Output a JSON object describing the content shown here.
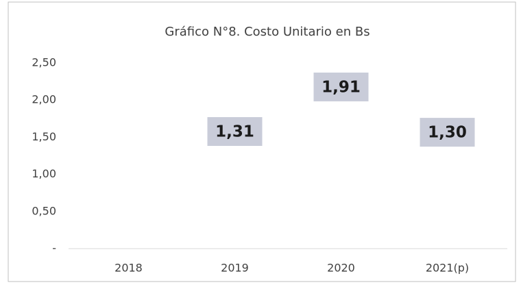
{
  "chart_data": {
    "type": "bar",
    "title": "Gráfico N°8. Costo Unitario en Bs",
    "categories": [
      "2018",
      "2019",
      "2020",
      "2021(p)"
    ],
    "values": [
      null,
      1.31,
      1.91,
      1.3
    ],
    "value_labels": [
      null,
      "1,31",
      "1,91",
      "1,30"
    ],
    "label_color": "#c9ccd9",
    "ylim": [
      0,
      2.5
    ],
    "yticks": [
      {
        "value": 0,
        "label": "-"
      },
      {
        "value": 0.5,
        "label": "0,50"
      },
      {
        "value": 1,
        "label": "1,00"
      },
      {
        "value": 1.5,
        "label": "1,50"
      },
      {
        "value": 2,
        "label": "2,00"
      },
      {
        "value": 2.5,
        "label": "2,50"
      }
    ],
    "grid": false
  }
}
